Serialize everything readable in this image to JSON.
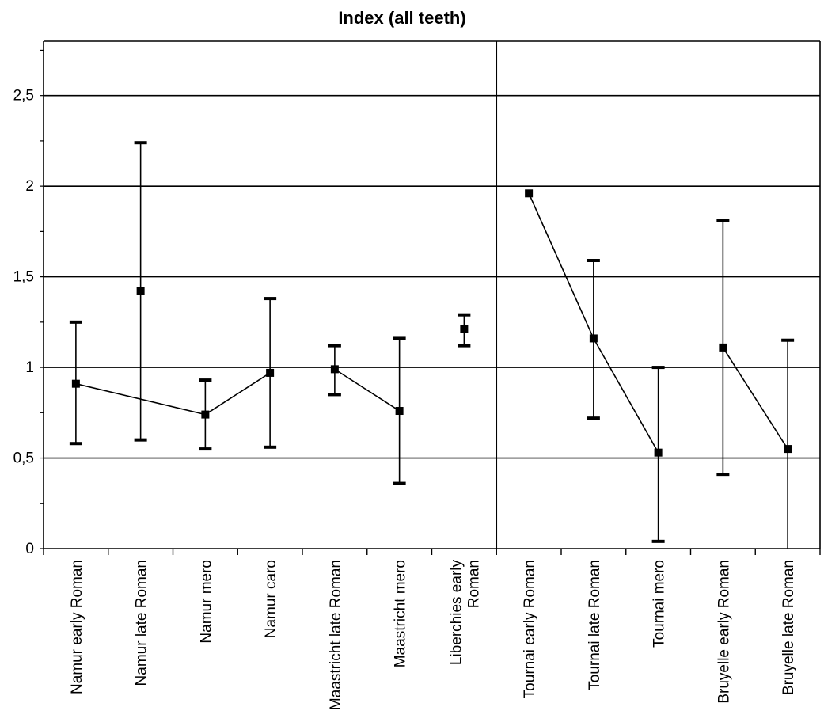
{
  "chart_data": {
    "type": "line",
    "title": "Index (all teeth)",
    "xlabel": "",
    "ylabel": "",
    "ylim": [
      0,
      2.8
    ],
    "yticks": [
      {
        "value": 0,
        "label": "0"
      },
      {
        "value": 0.5,
        "label": "0,5"
      },
      {
        "value": 1,
        "label": "1"
      },
      {
        "value": 1.5,
        "label": "1,5"
      },
      {
        "value": 2,
        "label": "2"
      },
      {
        "value": 2.5,
        "label": "2,5"
      }
    ],
    "grid": true,
    "reference_line_after_category": 7,
    "categories": [
      [
        "Namur early Roman"
      ],
      [
        "Namur late Roman"
      ],
      [
        "Namur mero"
      ],
      [
        "Namur caro"
      ],
      [
        "Maastricht late Roman"
      ],
      [
        "Maastricht mero"
      ],
      [
        "Liberchies early",
        "Roman"
      ],
      [
        "Tournai early Roman"
      ],
      [
        "Tournai late Roman"
      ],
      [
        "Tournai mero"
      ],
      [
        "Bruyelle early Roman"
      ],
      [
        "Bruyelle late Roman"
      ]
    ],
    "series": [
      {
        "values": [
          0.91,
          1.42,
          0.74,
          0.97,
          0.99,
          0.76,
          1.21,
          1.96,
          1.16,
          0.53,
          1.11,
          0.55
        ],
        "lower": [
          0.58,
          0.6,
          0.55,
          0.56,
          0.85,
          0.36,
          1.12,
          1.96,
          0.72,
          0.04,
          0.41,
          0.0
        ],
        "upper": [
          1.25,
          2.24,
          0.93,
          1.38,
          1.12,
          1.16,
          1.29,
          1.96,
          1.59,
          1.0,
          1.81,
          1.15
        ]
      }
    ],
    "connected_segments": [
      [
        0,
        2,
        3
      ],
      [
        4,
        5
      ],
      [
        7,
        8,
        9
      ],
      [
        10,
        11
      ]
    ]
  }
}
